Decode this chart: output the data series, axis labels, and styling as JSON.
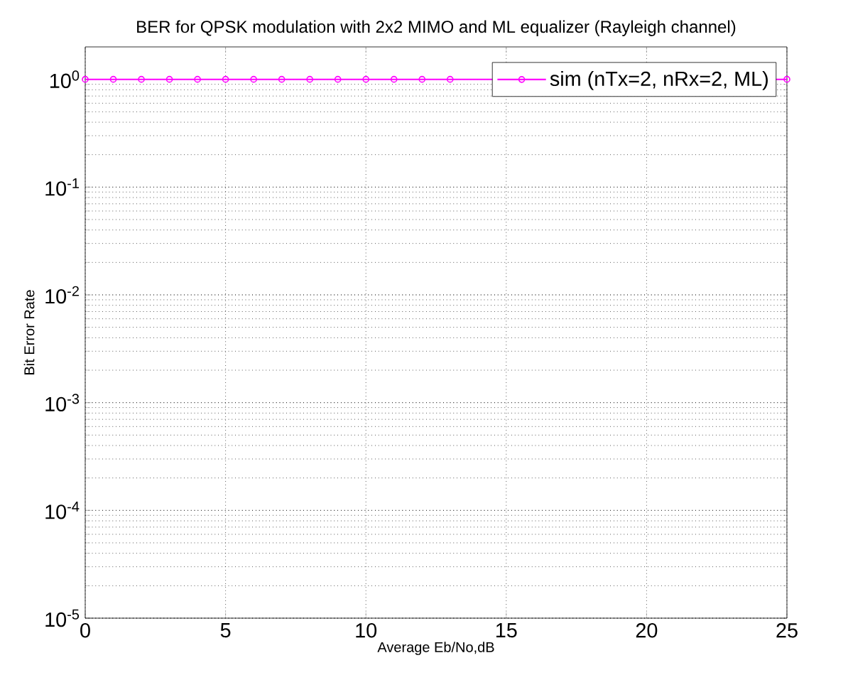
{
  "chart_data": {
    "type": "line",
    "title": "BER for QPSK modulation with 2x2 MIMO and ML equalizer (Rayleigh channel)",
    "xlabel": "Average Eb/No,dB",
    "ylabel": "Bit Error Rate",
    "x": [
      0,
      1,
      2,
      3,
      4,
      5,
      6,
      7,
      8,
      9,
      10,
      11,
      12,
      13,
      14,
      15,
      16,
      17,
      18,
      19,
      20,
      21,
      22,
      23,
      24,
      25
    ],
    "series": [
      {
        "name": "sim (nTx=2, nRx=2, ML)",
        "color": "#ff00ff",
        "values": [
          1,
          1,
          1,
          1,
          1,
          1,
          1,
          1,
          1,
          1,
          1,
          1,
          1,
          1,
          null,
          null,
          null,
          null,
          null,
          null,
          null,
          null,
          null,
          null,
          null,
          1
        ]
      }
    ],
    "xlim": [
      0,
      25
    ],
    "ylim": [
      1e-05,
      2
    ],
    "xticks": [
      0,
      5,
      10,
      15,
      20,
      25
    ],
    "yticks": [
      {
        "value": 1e-05,
        "label": "10$^{-5}$"
      },
      {
        "value": 0.0001,
        "label": "10$^{-4}$"
      },
      {
        "value": 0.001,
        "label": "10$^{-3}$"
      },
      {
        "value": 0.01,
        "label": "10$^{-2}$"
      },
      {
        "value": 0.1,
        "label": "10$^{-1}$"
      },
      {
        "value": 1,
        "label": "10$^{0}$"
      }
    ],
    "log": "y",
    "grid": true,
    "legend": "top right",
    "marker": "circle",
    "line_style": "solid"
  }
}
